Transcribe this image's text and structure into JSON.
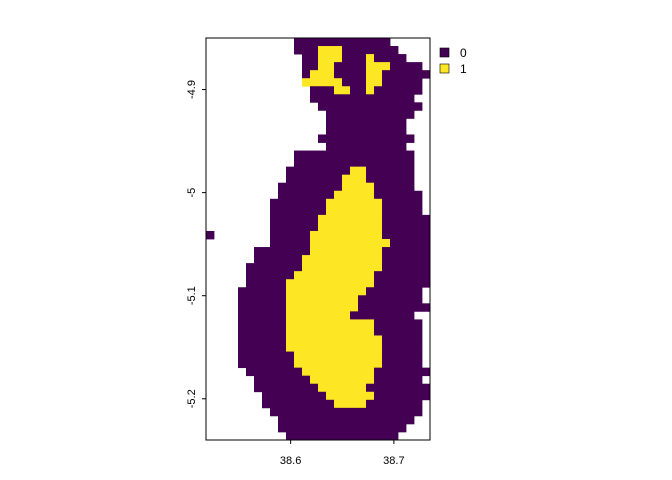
{
  "chart_data": {
    "type": "heatmap",
    "title": "",
    "xlabel": "",
    "ylabel": "",
    "xlim": [
      38.518,
      38.735
    ],
    "ylim": [
      -5.24,
      -4.85
    ],
    "x_ticks": [
      {
        "value": 38.6,
        "label": "38.6"
      },
      {
        "value": 38.7,
        "label": "38.7"
      }
    ],
    "y_ticks": [
      {
        "value": -4.9,
        "label": "-4.9"
      },
      {
        "value": -5.0,
        "label": "-5"
      },
      {
        "value": -5.1,
        "label": "-5.1"
      },
      {
        "value": -5.2,
        "label": "-5.2"
      }
    ],
    "legend": {
      "placement": "top-right",
      "entries": [
        {
          "label": "0",
          "color": "#440154"
        },
        {
          "label": "1",
          "color": "#FDE725"
        }
      ]
    },
    "colors": {
      "0": "#440154",
      "1": "#FDE725"
    },
    "legend_order": [
      "0",
      "1"
    ],
    "grid": false,
    "raster": {
      "x0": 38.518,
      "y0": -4.85,
      "cell_width": 0.00775,
      "cell_height": 0.0078,
      "rows": [
        "...........000000000000.......",
        "...........0001110000000......",
        "............0011100010000.....",
        "............001100001110000...",
        "............0111000011000000..",
        "............111110001100000...",
        ".............00011001000000...",
        ".............0000000000000....",
        "..............0000000000000...",
        "...............00000000000....",
        "...............0000000000.....",
        "...............0000000000.....",
        "..............000000000000....",
        "...............0000000000.....",
        "...........000000000000000....",
        "...........000000000000000....",
        "..........0000000011000000....",
        "..........0000000111000000....",
        ".........00000000111100000....",
        ".........000000011111000000...",
        "........0000000111111100000...",
        "........0000000111111100000...",
        "........00000011111111000000..",
        "........00000011111111000000..",
        "0.......00000111111111000000..",
        "........000001111111111000000.",
        "......00000001111111110000000.",
        "......0000001111111111000000..",
        ".....00000001111111111000000..",
        ".....00000011111111110000000..",
        ".....00000111111111110000000..",
        "....00000011111111110000000...",
        "....00000011111111100000000...",
        "....000000111111111000000000..",
        "....0000001111111100000000....",
        "....00000011111111111000000...",
        "....00000011111111111000000...",
        "....00000011111111111100000...",
        "....00000011111111111100000...",
        "....00000001111111111100000...",
        "....00000001111111111100000...",
        ".....00000001111111110000000..",
        "......000000011111111000000...",
        "......0000000011111100000000..",
        ".......0000000011111100000000.",
        ".......00000000011110000000...",
        "........0000000000000000000...",
        ".........00000000000000000....",
        ".........0000000000000000.....",
        "..........00000000000000......",
        "...........000000000000.......",
        "............00000000000.......",
        ".............000000000........"
      ]
    }
  }
}
